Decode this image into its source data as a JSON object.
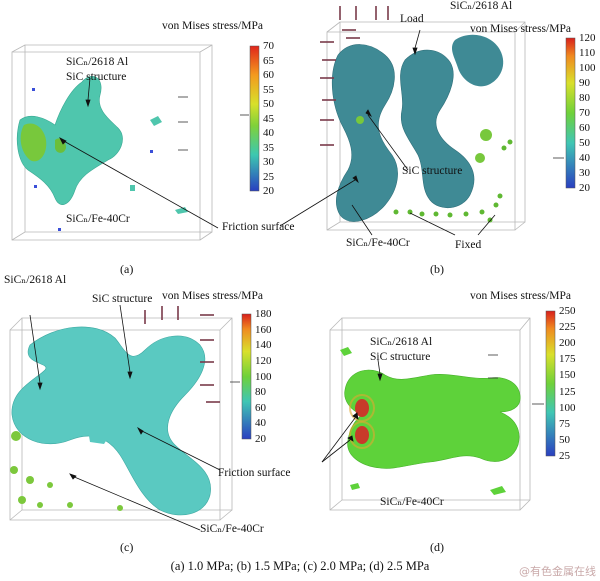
{
  "colorbar_title": "von Mises stress/MPa",
  "panels": [
    {
      "id": "a",
      "label": "(a)",
      "ticks": [
        "70",
        "65",
        "60",
        "55",
        "50",
        "45",
        "40",
        "35",
        "30",
        "25",
        "20"
      ],
      "labels": {
        "material": "SiCₙ/2618 Al",
        "structure": "SiC structure",
        "bottom": "SiCₙ/Fe-40Cr",
        "friction": "Friction surface"
      }
    },
    {
      "id": "b",
      "label": "(b)",
      "ticks": [
        "120",
        "110",
        "100",
        "90",
        "80",
        "70",
        "60",
        "50",
        "40",
        "30",
        "20"
      ],
      "labels": {
        "material": "SiCₙ/2618 Al",
        "load": "Load",
        "structure": "SiC structure",
        "bottom": "SiCₙ/Fe-40Cr",
        "fixed": "Fixed"
      }
    },
    {
      "id": "c",
      "label": "(c)",
      "ticks": [
        "180",
        "160",
        "140",
        "120",
        "100",
        "80",
        "60",
        "40",
        "20"
      ],
      "labels": {
        "material": "SiCₙ/2618 Al",
        "structure": "SiC structure",
        "bottom": "SiCₙ/Fe-40Cr",
        "friction": "Friction surface"
      }
    },
    {
      "id": "d",
      "label": "(d)",
      "ticks": [
        "250",
        "225",
        "200",
        "175",
        "150",
        "125",
        "100",
        "75",
        "50",
        "25"
      ],
      "labels": {
        "material": "SiCₙ/2618 Al",
        "structure": "SiC structure",
        "bottom": "SiCₙ/Fe-40Cr"
      }
    }
  ],
  "caption": "(a) 1.0 MPa; (b) 1.5 MPa; (c) 2.0 MPa; (d) 2.5 MPa",
  "watermark": "@有色金属在线"
}
